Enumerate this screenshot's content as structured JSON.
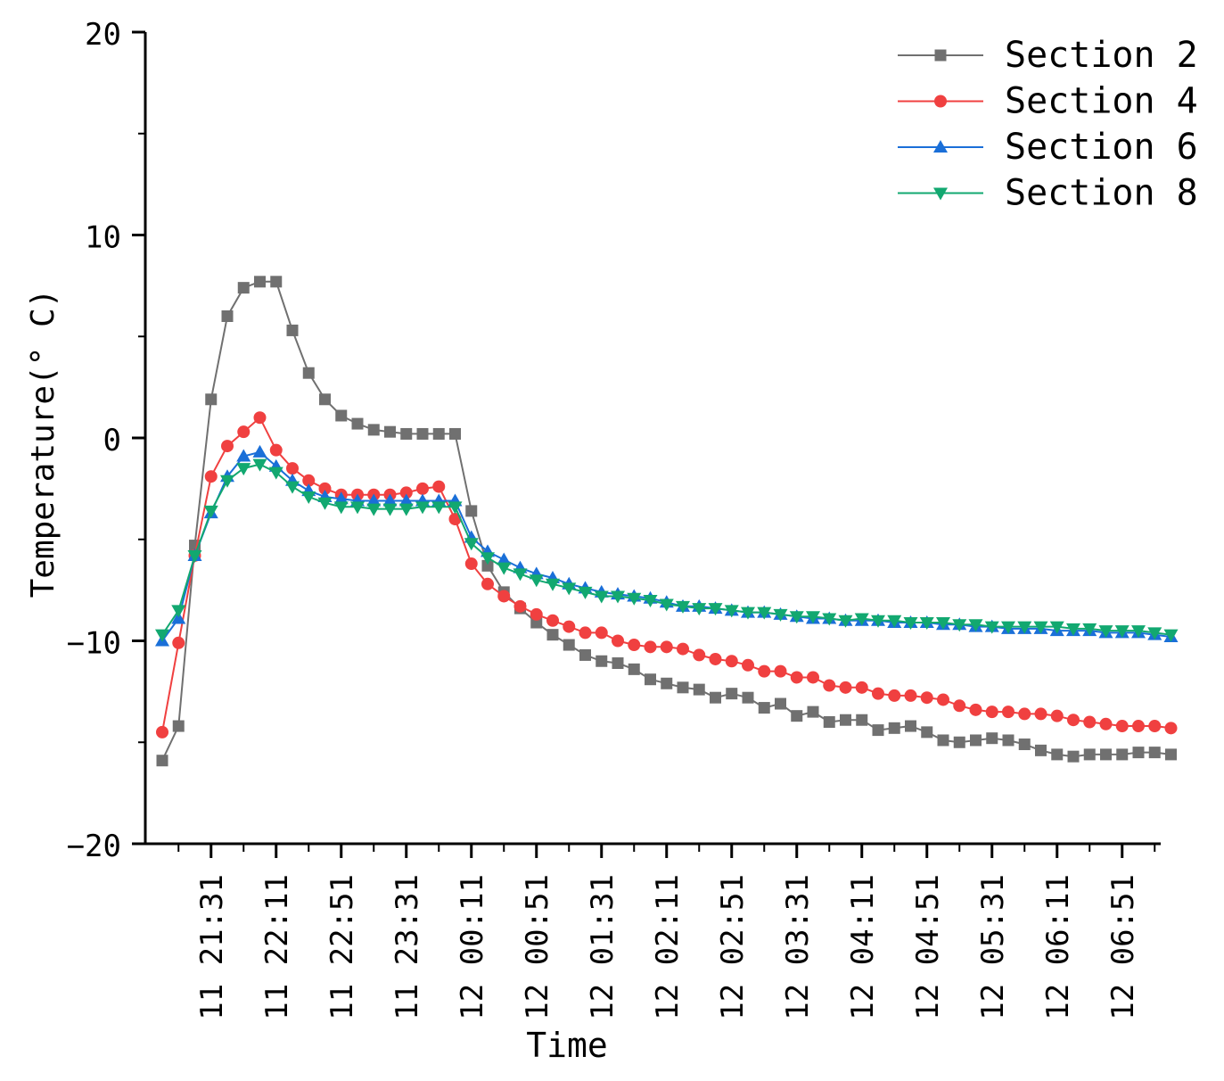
{
  "chart_data": {
    "type": "line",
    "title": "",
    "xlabel": "Time",
    "ylabel": "Temperature(° C)",
    "ylim": [
      -20,
      20
    ],
    "yticks": [
      "20",
      "10",
      "0",
      "−10",
      "−20"
    ],
    "ytick_values": [
      20,
      10,
      0,
      -10,
      -20
    ],
    "xlim": [
      0,
      62
    ],
    "x": [
      0,
      1,
      2,
      3,
      4,
      5,
      6,
      7,
      8,
      9,
      10,
      11,
      12,
      13,
      14,
      15,
      16,
      17,
      18,
      19,
      20,
      21,
      22,
      23,
      24,
      25,
      26,
      27,
      28,
      29,
      30,
      31,
      32,
      33,
      34,
      35,
      36,
      37,
      38,
      39,
      40,
      41,
      42,
      43,
      44,
      45,
      46,
      47,
      48,
      49,
      50,
      51,
      52,
      53,
      54,
      55,
      56,
      57,
      58,
      59,
      60,
      61,
      62
    ],
    "x_tick_positions": [
      3,
      7,
      11,
      15,
      19,
      23,
      27,
      31,
      35,
      39,
      43,
      47,
      51,
      55,
      59
    ],
    "x_tick_labels": [
      "11 21:31",
      "11 22:11",
      "11 22:51",
      "11 23:31",
      "12 00:11",
      "12 00:51",
      "12 01:31",
      "12 02:11",
      "12 02:51",
      "12 03:31",
      "12 04:11",
      "12 04:51",
      "12 05:31",
      "12 06:11",
      "12 06:51"
    ],
    "series": [
      {
        "name": "Section 2",
        "color": "#707070",
        "marker": "square",
        "values": [
          -15.9,
          -14.2,
          -5.3,
          1.9,
          6.0,
          7.4,
          7.7,
          7.7,
          5.3,
          3.2,
          1.9,
          1.1,
          0.7,
          0.4,
          0.3,
          0.2,
          0.2,
          0.2,
          0.2,
          -3.6,
          -6.3,
          -7.6,
          -8.4,
          -9.1,
          -9.7,
          -10.2,
          -10.7,
          -11.0,
          -11.1,
          -11.4,
          -11.9,
          -12.1,
          -12.3,
          -12.4,
          -12.8,
          -12.6,
          -12.8,
          -13.3,
          -13.1,
          -13.7,
          -13.5,
          -14.0,
          -13.9,
          -13.9,
          -14.4,
          -14.3,
          -14.2,
          -14.5,
          -14.9,
          -15.0,
          -14.9,
          -14.8,
          -14.9,
          -15.1,
          -15.4,
          -15.6,
          -15.7,
          -15.6,
          -15.6,
          -15.6,
          -15.5,
          -15.5,
          -15.6
        ]
      },
      {
        "name": "Section 4",
        "color": "#f04040",
        "marker": "circle",
        "values": [
          -14.5,
          -10.1,
          -5.8,
          -1.9,
          -0.4,
          0.3,
          1.0,
          -0.6,
          -1.5,
          -2.1,
          -2.5,
          -2.8,
          -2.8,
          -2.8,
          -2.8,
          -2.7,
          -2.5,
          -2.4,
          -4.0,
          -6.2,
          -7.2,
          -7.8,
          -8.3,
          -8.7,
          -9.0,
          -9.3,
          -9.6,
          -9.6,
          -10.0,
          -10.2,
          -10.3,
          -10.3,
          -10.4,
          -10.7,
          -10.9,
          -11.0,
          -11.2,
          -11.5,
          -11.5,
          -11.8,
          -11.8,
          -12.2,
          -12.3,
          -12.3,
          -12.6,
          -12.7,
          -12.7,
          -12.8,
          -12.9,
          -13.2,
          -13.4,
          -13.5,
          -13.5,
          -13.6,
          -13.6,
          -13.7,
          -13.9,
          -14.0,
          -14.1,
          -14.2,
          -14.2,
          -14.2,
          -14.3
        ]
      },
      {
        "name": "Section 6",
        "color": "#1a6fd8",
        "marker": "triangle-up",
        "values": [
          -10.0,
          -8.9,
          -5.8,
          -3.7,
          -1.9,
          -0.9,
          -0.7,
          -1.4,
          -2.1,
          -2.6,
          -2.9,
          -3.0,
          -3.1,
          -3.1,
          -3.1,
          -3.1,
          -3.1,
          -3.1,
          -3.1,
          -4.9,
          -5.6,
          -6.0,
          -6.4,
          -6.7,
          -6.9,
          -7.2,
          -7.4,
          -7.6,
          -7.7,
          -7.8,
          -7.9,
          -8.1,
          -8.3,
          -8.3,
          -8.4,
          -8.5,
          -8.6,
          -8.6,
          -8.7,
          -8.8,
          -8.9,
          -8.9,
          -9.0,
          -9.0,
          -9.0,
          -9.1,
          -9.1,
          -9.1,
          -9.2,
          -9.2,
          -9.3,
          -9.3,
          -9.4,
          -9.4,
          -9.4,
          -9.5,
          -9.5,
          -9.5,
          -9.6,
          -9.6,
          -9.6,
          -9.7,
          -9.8
        ]
      },
      {
        "name": "Section 8",
        "color": "#12a870",
        "marker": "triangle-down",
        "values": [
          -9.7,
          -8.5,
          -5.8,
          -3.6,
          -2.1,
          -1.5,
          -1.3,
          -1.7,
          -2.4,
          -2.9,
          -3.2,
          -3.4,
          -3.4,
          -3.5,
          -3.5,
          -3.5,
          -3.4,
          -3.4,
          -3.4,
          -5.2,
          -5.9,
          -6.4,
          -6.7,
          -7.0,
          -7.2,
          -7.4,
          -7.6,
          -7.8,
          -7.8,
          -7.9,
          -8.0,
          -8.2,
          -8.3,
          -8.4,
          -8.4,
          -8.5,
          -8.6,
          -8.6,
          -8.7,
          -8.8,
          -8.8,
          -8.9,
          -9.0,
          -8.9,
          -9.0,
          -9.0,
          -9.1,
          -9.1,
          -9.1,
          -9.2,
          -9.2,
          -9.3,
          -9.3,
          -9.3,
          -9.3,
          -9.3,
          -9.4,
          -9.4,
          -9.5,
          -9.5,
          -9.5,
          -9.6,
          -9.7
        ]
      }
    ],
    "legend_position": "top-right"
  }
}
